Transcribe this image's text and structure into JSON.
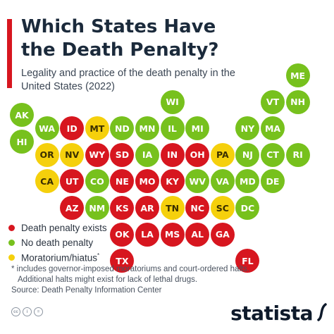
{
  "header": {
    "title": "Which States Have the Death Penalty?",
    "subtitle": "Legality and practice of the death penalty in the United States (2022)"
  },
  "colors": {
    "accent": "#d7161f",
    "death_penalty": "#d7161f",
    "no_death_penalty": "#77c11d",
    "moratorium": "#f5d00c"
  },
  "chart_data": {
    "type": "table",
    "status_legend": {
      "death_penalty": "Death penalty exists",
      "no_death_penalty": "No death penalty",
      "moratorium": "Moratorium/hiatus*"
    },
    "states": [
      {
        "abbr": "ME",
        "status": "no_death_penalty",
        "row": 0,
        "col": 11
      },
      {
        "abbr": "WI",
        "status": "no_death_penalty",
        "row": 1,
        "col": 6
      },
      {
        "abbr": "VT",
        "status": "no_death_penalty",
        "row": 1,
        "col": 10
      },
      {
        "abbr": "NH",
        "status": "no_death_penalty",
        "row": 1,
        "col": 11
      },
      {
        "abbr": "AK",
        "status": "no_death_penalty",
        "row": 1.5,
        "col": 0
      },
      {
        "abbr": "WA",
        "status": "no_death_penalty",
        "row": 2,
        "col": 1
      },
      {
        "abbr": "ID",
        "status": "death_penalty",
        "row": 2,
        "col": 2
      },
      {
        "abbr": "MT",
        "status": "moratorium",
        "row": 2,
        "col": 3
      },
      {
        "abbr": "ND",
        "status": "no_death_penalty",
        "row": 2,
        "col": 4
      },
      {
        "abbr": "MN",
        "status": "no_death_penalty",
        "row": 2,
        "col": 5
      },
      {
        "abbr": "IL",
        "status": "no_death_penalty",
        "row": 2,
        "col": 6
      },
      {
        "abbr": "MI",
        "status": "no_death_penalty",
        "row": 2,
        "col": 7
      },
      {
        "abbr": "NY",
        "status": "no_death_penalty",
        "row": 2,
        "col": 9
      },
      {
        "abbr": "MA",
        "status": "no_death_penalty",
        "row": 2,
        "col": 10
      },
      {
        "abbr": "HI",
        "status": "no_death_penalty",
        "row": 2.5,
        "col": 0
      },
      {
        "abbr": "OR",
        "status": "moratorium",
        "row": 3,
        "col": 1
      },
      {
        "abbr": "NV",
        "status": "moratorium",
        "row": 3,
        "col": 2
      },
      {
        "abbr": "WY",
        "status": "death_penalty",
        "row": 3,
        "col": 3
      },
      {
        "abbr": "SD",
        "status": "death_penalty",
        "row": 3,
        "col": 4
      },
      {
        "abbr": "IA",
        "status": "no_death_penalty",
        "row": 3,
        "col": 5
      },
      {
        "abbr": "IN",
        "status": "death_penalty",
        "row": 3,
        "col": 6
      },
      {
        "abbr": "OH",
        "status": "death_penalty",
        "row": 3,
        "col": 7
      },
      {
        "abbr": "PA",
        "status": "moratorium",
        "row": 3,
        "col": 8
      },
      {
        "abbr": "NJ",
        "status": "no_death_penalty",
        "row": 3,
        "col": 9
      },
      {
        "abbr": "CT",
        "status": "no_death_penalty",
        "row": 3,
        "col": 10
      },
      {
        "abbr": "RI",
        "status": "no_death_penalty",
        "row": 3,
        "col": 11
      },
      {
        "abbr": "CA",
        "status": "moratorium",
        "row": 4,
        "col": 1
      },
      {
        "abbr": "UT",
        "status": "death_penalty",
        "row": 4,
        "col": 2
      },
      {
        "abbr": "CO",
        "status": "no_death_penalty",
        "row": 4,
        "col": 3
      },
      {
        "abbr": "NE",
        "status": "death_penalty",
        "row": 4,
        "col": 4
      },
      {
        "abbr": "MO",
        "status": "death_penalty",
        "row": 4,
        "col": 5
      },
      {
        "abbr": "KY",
        "status": "death_penalty",
        "row": 4,
        "col": 6
      },
      {
        "abbr": "WV",
        "status": "no_death_penalty",
        "row": 4,
        "col": 7
      },
      {
        "abbr": "VA",
        "status": "no_death_penalty",
        "row": 4,
        "col": 8
      },
      {
        "abbr": "MD",
        "status": "no_death_penalty",
        "row": 4,
        "col": 9
      },
      {
        "abbr": "DE",
        "status": "no_death_penalty",
        "row": 4,
        "col": 10
      },
      {
        "abbr": "AZ",
        "status": "death_penalty",
        "row": 5,
        "col": 2
      },
      {
        "abbr": "NM",
        "status": "no_death_penalty",
        "row": 5,
        "col": 3
      },
      {
        "abbr": "KS",
        "status": "death_penalty",
        "row": 5,
        "col": 4
      },
      {
        "abbr": "AR",
        "status": "death_penalty",
        "row": 5,
        "col": 5
      },
      {
        "abbr": "TN",
        "status": "moratorium",
        "row": 5,
        "col": 6
      },
      {
        "abbr": "NC",
        "status": "death_penalty",
        "row": 5,
        "col": 7
      },
      {
        "abbr": "SC",
        "status": "moratorium",
        "row": 5,
        "col": 8
      },
      {
        "abbr": "DC",
        "status": "no_death_penalty",
        "row": 5,
        "col": 9
      },
      {
        "abbr": "OK",
        "status": "death_penalty",
        "row": 6,
        "col": 4
      },
      {
        "abbr": "LA",
        "status": "death_penalty",
        "row": 6,
        "col": 5
      },
      {
        "abbr": "MS",
        "status": "death_penalty",
        "row": 6,
        "col": 6
      },
      {
        "abbr": "AL",
        "status": "death_penalty",
        "row": 6,
        "col": 7
      },
      {
        "abbr": "GA",
        "status": "death_penalty",
        "row": 6,
        "col": 8
      },
      {
        "abbr": "TX",
        "status": "death_penalty",
        "row": 7,
        "col": 4
      },
      {
        "abbr": "FL",
        "status": "death_penalty",
        "row": 7,
        "col": 9
      }
    ]
  },
  "footnote": {
    "line1": "* includes governor-imposed moratoriums and court-ordered halts.",
    "line2": "Additional halts might exist for lack of lethal drugs.",
    "source": "Source: Death Penalty Information Center"
  },
  "footer": {
    "brand": "statista",
    "icons": [
      "cc-icon",
      "attribution-icon",
      "no-derivatives-icon"
    ]
  }
}
